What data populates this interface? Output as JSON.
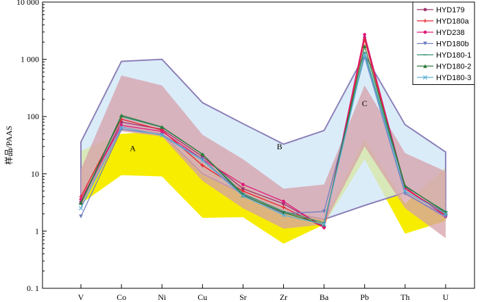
{
  "chart_data": {
    "type": "line",
    "y_scale": "log",
    "ylim": [
      0.1,
      10000
    ],
    "ylabel": "样品/PAAS",
    "xlabel": "",
    "title": "",
    "categories": [
      "V",
      "Co",
      "Ni",
      "Cu",
      "Sr",
      "Zr",
      "Ba",
      "Pb",
      "Th",
      "U"
    ],
    "y_ticks": [
      {
        "value": 0.1,
        "label": "0. 1"
      },
      {
        "value": 1,
        "label": "1"
      },
      {
        "value": 10,
        "label": "10"
      },
      {
        "value": 100,
        "label": "100"
      },
      {
        "value": 1000,
        "label": "1 000"
      },
      {
        "value": 10000,
        "label": "10 000"
      }
    ],
    "grid": false,
    "legend_position": "top-right",
    "series": [
      {
        "name": "HYD179",
        "color": "#a0326e",
        "marker": "circle",
        "values": [
          3.2,
          80,
          60,
          20,
          5.5,
          3.0,
          1.2,
          2400,
          5.5,
          2.0
        ]
      },
      {
        "name": "HYD180a",
        "color": "#e8202a",
        "marker": "plus",
        "values": [
          4.0,
          90,
          58,
          14,
          5.0,
          2.6,
          1.15,
          2200,
          5.5,
          1.9
        ]
      },
      {
        "name": "HYD238",
        "color": "#e0187a",
        "marker": "circle",
        "values": [
          3.6,
          70,
          55,
          18,
          6.5,
          3.3,
          1.15,
          2700,
          5.8,
          1.8
        ]
      },
      {
        "name": "HYD180b",
        "color": "#6f7ec0",
        "marker": "triangle-down",
        "values": [
          1.8,
          60,
          48,
          18,
          4.3,
          2.0,
          2.2,
          1100,
          4.5,
          1.8
        ]
      },
      {
        "name": "HYD180-1",
        "color": "#2f9070",
        "marker": "dash",
        "values": [
          3.0,
          100,
          65,
          22,
          4.5,
          2.2,
          1.4,
          1300,
          6.0,
          2.2
        ]
      },
      {
        "name": "HYD180-2",
        "color": "#2c7a3a",
        "marker": "triangle-up",
        "values": [
          3.1,
          105,
          66,
          22,
          4.2,
          2.1,
          1.3,
          1700,
          6.2,
          2.1
        ]
      },
      {
        "name": "HYD180-3",
        "color": "#5fb0d8",
        "marker": "x",
        "values": [
          2.5,
          65,
          47,
          17,
          4.1,
          1.9,
          1.3,
          1200,
          5.0,
          2.0
        ]
      }
    ],
    "zones": [
      {
        "label": "A",
        "fill": "#f6ed00",
        "opacity": 1,
        "upper": [
          25,
          50,
          55,
          22,
          6.5,
          2.5,
          1.6,
          40,
          3.0,
          13
        ],
        "lower": [
          3.0,
          9.5,
          9.0,
          1.7,
          1.75,
          0.6,
          1.3,
          18,
          0.9,
          1.5
        ],
        "label_at": {
          "category": "Co",
          "offset": 0.28,
          "value": 28
        }
      },
      {
        "label": "B",
        "fill": "#cfe6f7",
        "stroke": "#8c7fb8",
        "opacity": 0.75,
        "upper": [
          36,
          920,
          1000,
          175,
          75,
          33,
          57,
          1200,
          72,
          24
        ],
        "lower": [
          3.0,
          65,
          50,
          10,
          4.5,
          2.2,
          1.6,
          2.8,
          4.7,
          1.7
        ],
        "label_at": {
          "category": "Zr",
          "offset": -0.1,
          "value": 30
        }
      },
      {
        "label": "",
        "fill": "#d6a0a8",
        "opacity": 0.75,
        "upper": [
          12,
          520,
          350,
          48,
          18,
          5.5,
          6.5,
          350,
          23,
          11
        ],
        "lower": [
          2.5,
          55,
          45,
          7.5,
          2.5,
          1.1,
          1.3,
          30,
          2.5,
          0.75
        ],
        "label_at": {
          "category": "Ba",
          "offset": 0,
          "value": 0
        }
      },
      {
        "label": "C",
        "fill": "#f6ed00",
        "opacity": 0,
        "upper": [
          1,
          1,
          1,
          1,
          1,
          1,
          1,
          1,
          1,
          1
        ],
        "lower": [
          1,
          1,
          1,
          1,
          1,
          1,
          1,
          1,
          1,
          1
        ],
        "label_at": {
          "category": "Pb",
          "offset": 0,
          "value": 170
        }
      }
    ]
  }
}
